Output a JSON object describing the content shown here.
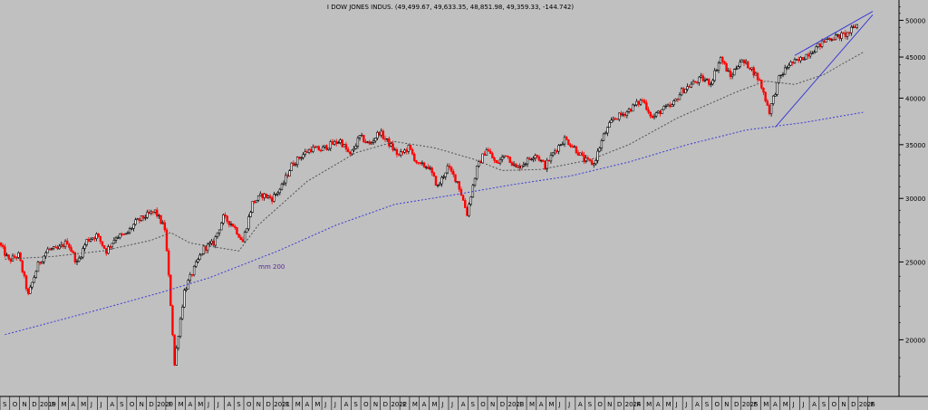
{
  "colors": {
    "background": "#c0c0c0",
    "up_candle": "#000000",
    "down_candle": "#ff0000",
    "ma_long": "#3b3bd6",
    "ma_short": "#505050",
    "trendline": "#3b3bd6",
    "annotation": "#5a2a9a"
  },
  "chart_data": {
    "type": "line",
    "title": "I DOW JONES INDUS. (49,499.67, 49,633.35, 48,851.98, 49,359.33, -144.742)",
    "xlabel": "",
    "ylabel": "",
    "y_scale": "log",
    "ylim": [
      17000,
      53000
    ],
    "yticks": [
      20000,
      25000,
      30000,
      35000,
      40000,
      45000,
      50000
    ],
    "ytick_labels": [
      "20000",
      "25000",
      "30000",
      "35000",
      "40000",
      "45000",
      "50000"
    ],
    "x_month_labels": [
      "S",
      "O",
      "N",
      "D",
      "2019",
      "F",
      "M",
      "A",
      "M",
      "J",
      "J",
      "A",
      "S",
      "O",
      "N",
      "D",
      "2020",
      "F",
      "M",
      "A",
      "M",
      "J",
      "J",
      "A",
      "S",
      "O",
      "N",
      "D",
      "2021",
      "F",
      "M",
      "A",
      "M",
      "J",
      "J",
      "A",
      "S",
      "O",
      "N",
      "D",
      "2022",
      "F",
      "M",
      "A",
      "M",
      "J",
      "J",
      "A",
      "S",
      "O",
      "N",
      "D",
      "2023",
      "F",
      "M",
      "A",
      "M",
      "J",
      "J",
      "A",
      "S",
      "O",
      "N",
      "D",
      "2024",
      "F",
      "M",
      "A",
      "M",
      "J",
      "J",
      "A",
      "S",
      "O",
      "N",
      "D",
      "2025",
      "F",
      "M",
      "A",
      "M",
      "J",
      "J",
      "A",
      "S",
      "O",
      "N",
      "D",
      "2026",
      "F"
    ],
    "x_start": "2018-09",
    "price_path": [
      [
        "2018-09",
        26400
      ],
      [
        "2018-10",
        25100
      ],
      [
        "2018-11",
        25500
      ],
      [
        "2018-12",
        22700
      ],
      [
        "2019-01",
        24800
      ],
      [
        "2019-02",
        25900
      ],
      [
        "2019-03",
        25900
      ],
      [
        "2019-04",
        26500
      ],
      [
        "2019-05",
        24900
      ],
      [
        "2019-06",
        26600
      ],
      [
        "2019-07",
        27000
      ],
      [
        "2019-08",
        25800
      ],
      [
        "2019-09",
        26900
      ],
      [
        "2019-10",
        27000
      ],
      [
        "2019-11",
        28000
      ],
      [
        "2019-12",
        28500
      ],
      [
        "2020-01",
        28900
      ],
      [
        "2020-02",
        27500
      ],
      [
        "2020-03",
        18600
      ],
      [
        "2020-04",
        23000
      ],
      [
        "2020-05",
        24500
      ],
      [
        "2020-06",
        26000
      ],
      [
        "2020-07",
        26400
      ],
      [
        "2020-08",
        28400
      ],
      [
        "2020-09",
        27800
      ],
      [
        "2020-10",
        26500
      ],
      [
        "2020-11",
        29600
      ],
      [
        "2020-12",
        30300
      ],
      [
        "2021-01",
        30000
      ],
      [
        "2021-02",
        31000
      ],
      [
        "2021-03",
        33000
      ],
      [
        "2021-04",
        33900
      ],
      [
        "2021-05",
        34600
      ],
      [
        "2021-06",
        34500
      ],
      [
        "2021-07",
        35000
      ],
      [
        "2021-08",
        35400
      ],
      [
        "2021-09",
        33900
      ],
      [
        "2021-10",
        35800
      ],
      [
        "2021-11",
        35000
      ],
      [
        "2021-12",
        36300
      ],
      [
        "2022-01",
        35100
      ],
      [
        "2022-02",
        33900
      ],
      [
        "2022-03",
        34700
      ],
      [
        "2022-04",
        33000
      ],
      [
        "2022-05",
        32900
      ],
      [
        "2022-06",
        31000
      ],
      [
        "2022-07",
        32800
      ],
      [
        "2022-08",
        31500
      ],
      [
        "2022-09",
        28700
      ],
      [
        "2022-10",
        32700
      ],
      [
        "2022-11",
        34600
      ],
      [
        "2022-12",
        33100
      ],
      [
        "2023-01",
        34100
      ],
      [
        "2023-02",
        32700
      ],
      [
        "2023-03",
        33300
      ],
      [
        "2023-04",
        34100
      ],
      [
        "2023-05",
        32900
      ],
      [
        "2023-06",
        34400
      ],
      [
        "2023-07",
        35600
      ],
      [
        "2023-08",
        34700
      ],
      [
        "2023-09",
        33500
      ],
      [
        "2023-10",
        33100
      ],
      [
        "2023-11",
        35900
      ],
      [
        "2023-12",
        37700
      ],
      [
        "2024-01",
        38200
      ],
      [
        "2024-02",
        39000
      ],
      [
        "2024-03",
        39800
      ],
      [
        "2024-04",
        37800
      ],
      [
        "2024-05",
        38700
      ],
      [
        "2024-06",
        39100
      ],
      [
        "2024-07",
        40800
      ],
      [
        "2024-08",
        41600
      ],
      [
        "2024-09",
        42300
      ],
      [
        "2024-10",
        41800
      ],
      [
        "2024-11",
        44900
      ],
      [
        "2024-12",
        42500
      ],
      [
        "2025-01",
        44500
      ],
      [
        "2025-02",
        43800
      ],
      [
        "2025-03",
        42000
      ],
      [
        "2025-04",
        38500
      ],
      [
        "2025-05",
        42300
      ],
      [
        "2025-06",
        44100
      ],
      [
        "2025-07",
        44500
      ],
      [
        "2025-08",
        45500
      ],
      [
        "2025-09",
        46400
      ],
      [
        "2025-10",
        47500
      ],
      [
        "2025-11",
        47700
      ],
      [
        "2025-12",
        48100
      ],
      [
        "2026-01",
        49359
      ]
    ],
    "series": [
      {
        "name": "mm 200",
        "style": "dotted",
        "points": [
          [
            "2018-09",
            20300
          ],
          [
            "2019-06",
            21700
          ],
          [
            "2020-01",
            22900
          ],
          [
            "2020-06",
            23900
          ],
          [
            "2021-01",
            25800
          ],
          [
            "2021-07",
            27800
          ],
          [
            "2022-01",
            29500
          ],
          [
            "2022-07",
            30300
          ],
          [
            "2023-01",
            31200
          ],
          [
            "2023-07",
            32000
          ],
          [
            "2024-01",
            33300
          ],
          [
            "2024-07",
            35000
          ],
          [
            "2025-01",
            36500
          ],
          [
            "2025-07",
            37300
          ],
          [
            "2026-01",
            38400
          ]
        ]
      },
      {
        "style": "dotted",
        "points": [
          [
            "2018-09",
            25200
          ],
          [
            "2019-02",
            25400
          ],
          [
            "2019-07",
            25800
          ],
          [
            "2019-12",
            26600
          ],
          [
            "2020-02",
            27200
          ],
          [
            "2020-04",
            26400
          ],
          [
            "2020-09",
            25800
          ],
          [
            "2020-11",
            27800
          ],
          [
            "2021-04",
            31500
          ],
          [
            "2021-09",
            34200
          ],
          [
            "2022-01",
            35300
          ],
          [
            "2022-05",
            34700
          ],
          [
            "2022-09",
            33600
          ],
          [
            "2022-12",
            32500
          ],
          [
            "2023-04",
            32600
          ],
          [
            "2023-09",
            33500
          ],
          [
            "2024-01",
            35000
          ],
          [
            "2024-06",
            37800
          ],
          [
            "2024-12",
            40700
          ],
          [
            "2025-03",
            42000
          ],
          [
            "2025-06",
            41600
          ],
          [
            "2025-09",
            42800
          ],
          [
            "2025-11",
            44200
          ],
          [
            "2026-01",
            45600
          ]
        ]
      }
    ],
    "trendlines": [
      {
        "from": [
          "2025-04",
          36800
        ],
        "to": [
          "2026-02",
          50800
        ]
      },
      {
        "from": [
          "2025-06",
          45200
        ],
        "to": [
          "2026-02",
          51300
        ]
      }
    ],
    "annotations": [
      {
        "text": "mm 200",
        "at": [
          "2020-11",
          24500
        ]
      }
    ]
  }
}
